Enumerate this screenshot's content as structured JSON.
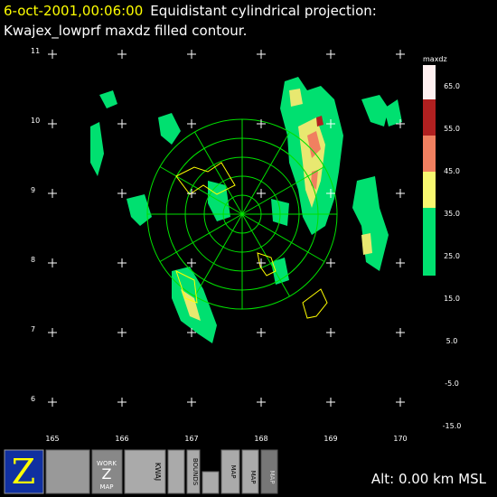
{
  "header": {
    "date": "6-oct-2001,00:06:00",
    "projection": "Equidistant cylindrical projection:",
    "subtitle": "Kwajex_lowprf maxdz filled contour."
  },
  "map": {
    "lat_labels": [
      "11",
      "10",
      "9",
      "8",
      "7",
      "6"
    ],
    "lon_labels": [
      "165",
      "166",
      "167",
      "168",
      "169",
      "170"
    ]
  },
  "legend": {
    "title": "maxdz",
    "labels": [
      "65.0",
      "55.0",
      "45.0",
      "35.0",
      "25.0",
      "15.0",
      "5.0",
      "-5.0",
      "-15.0"
    ]
  },
  "toolbar": {
    "work_lines": [
      "WORK",
      "Z",
      "MAP"
    ],
    "kwaj": "KWAJ",
    "bounds": "BOUNDS",
    "map1": "MAP",
    "map2": "MAP",
    "map3": "MAP"
  },
  "status": "Alt: 0.00 km MSL"
}
